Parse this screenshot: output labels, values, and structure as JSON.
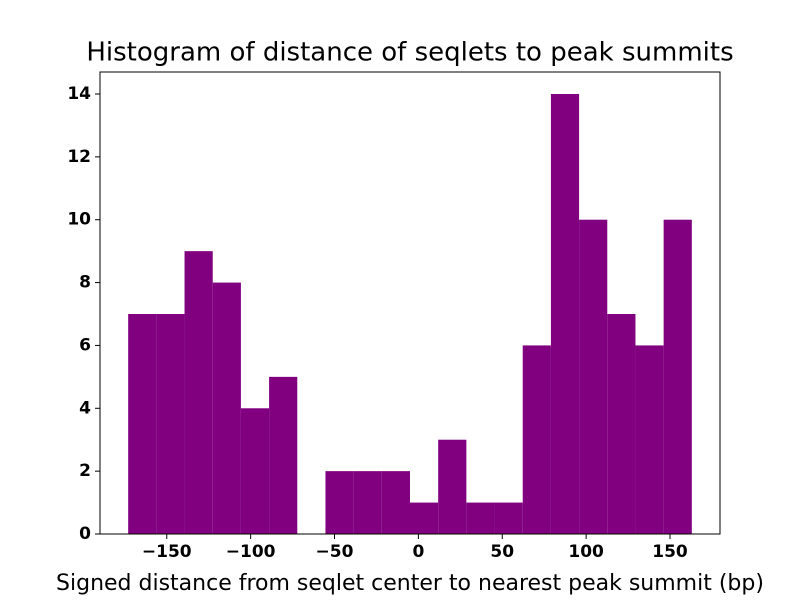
{
  "chart_data": {
    "type": "histogram",
    "title": "Histogram of distance of seqlets to peak summits",
    "x_label": "Signed distance from seqlet center to nearest peak summit (bp)",
    "bins": [
      -173,
      -156.2,
      -139.4,
      -122.6,
      -105.8,
      -89,
      -72.2,
      -55.4,
      -38.6,
      -21.8,
      -5,
      11.8,
      28.6,
      45.4,
      62.2,
      79,
      95.8,
      112.6,
      129.4,
      146.2,
      163
    ],
    "values": [
      7,
      7,
      9,
      8,
      4,
      5,
      0,
      2,
      2,
      2,
      1,
      3,
      1,
      1,
      6,
      14,
      10,
      7,
      6,
      10
    ],
    "color": "#800080",
    "xlim": [
      -189.8,
      179.8
    ],
    "xticks": [
      {
        "value": -150,
        "label": "−150"
      },
      {
        "value": -100,
        "label": "−100"
      },
      {
        "value": -50,
        "label": "−50"
      },
      0,
      50,
      100,
      150
    ],
    "ylim": [
      0,
      14.7
    ],
    "yticks": [
      0,
      2,
      4,
      6,
      8,
      10,
      12,
      14
    ],
    "grid": false
  }
}
